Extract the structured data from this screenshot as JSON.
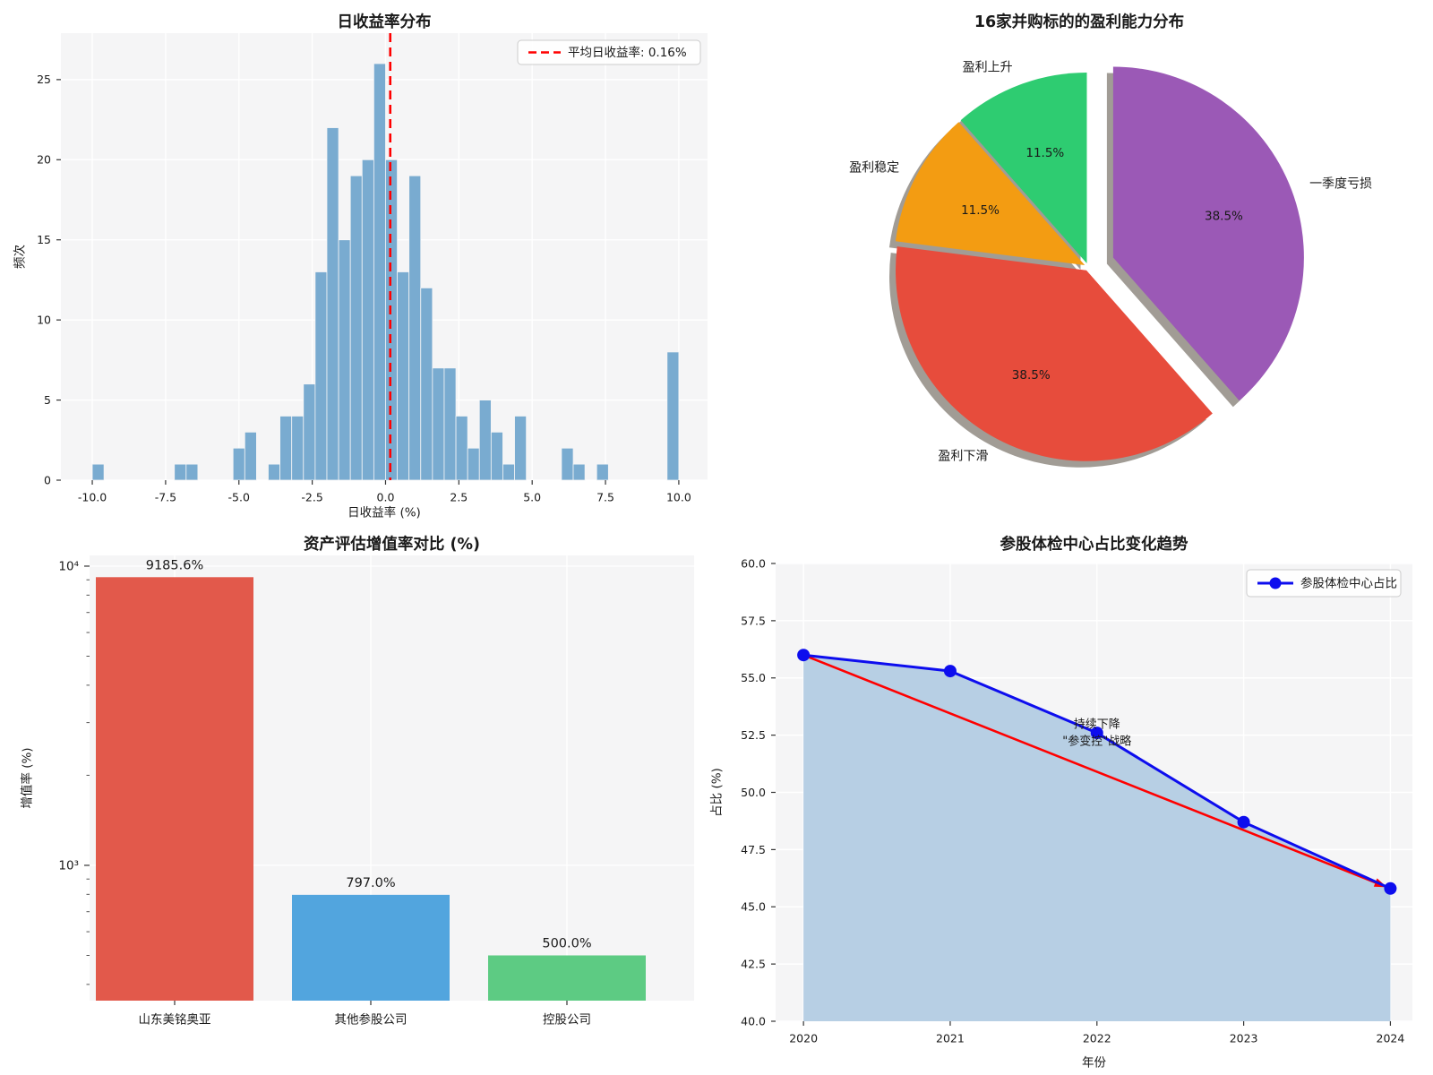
{
  "chart_data": [
    {
      "type": "histogram",
      "title": "日收益率分布",
      "xlabel": "日收益率 (%)",
      "ylabel": "频次",
      "legend_label": "平均日收益率: 0.16%",
      "legend_position": "upper right",
      "mean_value": 0.16,
      "bin_width": 0.4,
      "bins": [
        [
          -10.0,
          1
        ],
        [
          -7.2,
          1
        ],
        [
          -6.8,
          1
        ],
        [
          -5.2,
          2
        ],
        [
          -4.8,
          3
        ],
        [
          -4.0,
          1
        ],
        [
          -3.6,
          4
        ],
        [
          -3.2,
          4
        ],
        [
          -2.8,
          6
        ],
        [
          -2.4,
          13
        ],
        [
          -2.0,
          22
        ],
        [
          -1.6,
          15
        ],
        [
          -1.2,
          19
        ],
        [
          -0.8,
          20
        ],
        [
          -0.4,
          26
        ],
        [
          0.0,
          20
        ],
        [
          0.4,
          13
        ],
        [
          0.8,
          19
        ],
        [
          1.2,
          12
        ],
        [
          1.6,
          7
        ],
        [
          2.0,
          7
        ],
        [
          2.4,
          4
        ],
        [
          2.8,
          2
        ],
        [
          3.2,
          5
        ],
        [
          3.6,
          3
        ],
        [
          4.0,
          1
        ],
        [
          4.4,
          4
        ],
        [
          6.0,
          2
        ],
        [
          6.4,
          1
        ],
        [
          7.2,
          1
        ],
        [
          9.6,
          8
        ]
      ],
      "xlim": [
        -11.07,
        10.98
      ],
      "ylim": [
        0,
        27.9
      ],
      "xticks": [
        -10,
        -7.5,
        -5,
        -2.5,
        0,
        2.5,
        5,
        7.5,
        10
      ],
      "xtick_labels": [
        "-10.0",
        "-7.5",
        "-5.0",
        "-2.5",
        "0.0",
        "2.5",
        "5.0",
        "7.5",
        "10.0"
      ],
      "yticks": [
        0,
        5,
        10,
        15,
        20,
        25
      ],
      "ytick_labels": [
        "0",
        "5",
        "10",
        "15",
        "20",
        "25"
      ],
      "grid": true,
      "colors": {
        "bar": "#79abd0",
        "mean_line": "#ff0000",
        "plot_bg": "#f5f5f6",
        "grid": "#ffffff"
      }
    },
    {
      "type": "pie",
      "title": "16家并购标的的盈利能力分布",
      "start_angle": 90,
      "direction": "counterclockwise",
      "shadow": true,
      "slices": [
        {
          "label": "盈利上升",
          "value": 11.5,
          "display": "11.5%",
          "color": "#2ecc71",
          "explode": 0.02
        },
        {
          "label": "盈利稳定",
          "value": 11.5,
          "display": "11.5%",
          "color": "#f39c12",
          "explode": 0.02
        },
        {
          "label": "盈利下滑",
          "value": 38.5,
          "display": "38.5%",
          "color": "#e74c3c",
          "explode": 0.02
        },
        {
          "label": "一季度亏损",
          "value": 38.5,
          "display": "38.5%",
          "color": "#9b59b6",
          "explode": 0.14
        }
      ]
    },
    {
      "type": "bar",
      "yscale": "log",
      "title": "资产评估增值率对比 (%)",
      "ylabel": "增值率 (%)",
      "categories": [
        "山东美铭奥亚",
        "其他参股公司",
        "控股公司"
      ],
      "values": [
        9185.6,
        797.0,
        500.0
      ],
      "value_labels": [
        "9185.6%",
        "797.0%",
        "500.0%"
      ],
      "bar_colors": [
        "#e2594b",
        "#52a5de",
        "#5dcb83"
      ],
      "ylim": [
        353,
        10860
      ],
      "ytick_values": [
        10000,
        1000
      ],
      "ytick_labels": [
        "10⁴",
        "10³"
      ],
      "minor_ticks": [
        400,
        500,
        600,
        700,
        800,
        900,
        2000,
        3000,
        4000,
        5000,
        6000,
        7000,
        8000,
        9000
      ],
      "colors": {
        "plot_bg": "#f5f5f6",
        "grid": "#ffffff"
      }
    },
    {
      "type": "line",
      "title": "参股体检中心占比变化趋势",
      "xlabel": "年份",
      "ylabel": "占比 (%)",
      "legend_label": "参股体检中心占比",
      "legend_position": "upper right",
      "x": [
        2020,
        2021,
        2022,
        2023,
        2024
      ],
      "xtick_labels": [
        "2020",
        "2021",
        "2022",
        "2023",
        "2024"
      ],
      "y": [
        56.0,
        55.3,
        52.6,
        48.7,
        45.8
      ],
      "ylim": [
        40,
        60
      ],
      "yticks": [
        40,
        42.5,
        45,
        47.5,
        50,
        52.5,
        55,
        57.5,
        60
      ],
      "ytick_labels": [
        "40.0",
        "42.5",
        "45.0",
        "47.5",
        "50.0",
        "52.5",
        "55.0",
        "57.5",
        "60.0"
      ],
      "annotation": {
        "text_lines": [
          "持续下降",
          "\"参变控\"战略"
        ],
        "anchor": [
          2022,
          52.95
        ],
        "arrow_from": [
          2020,
          56.0
        ],
        "arrow_to": [
          2024,
          45.8
        ],
        "color": "#ff0000"
      },
      "colors": {
        "line": "#0d0dee",
        "marker": "#0d0dee",
        "fill": "#b7cfe4",
        "trend": "#ff0000",
        "plot_bg": "#f5f5f6",
        "grid": "#ffffff"
      }
    }
  ]
}
